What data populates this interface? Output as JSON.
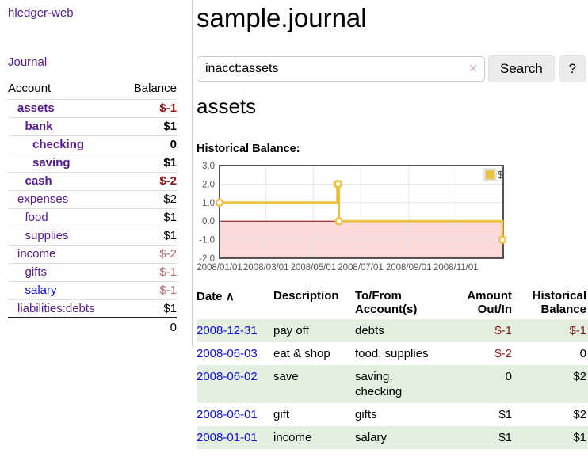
{
  "colors": {
    "link_purple": "#551a8b",
    "link_blue": "#0f0fd9",
    "negative_dark": "#8b1515",
    "negative_soft": "#b76c6c",
    "row_stripe_green": "#e3efdf",
    "chart_line_gold": "#edc240",
    "chart_fill_pink": "#fcdada",
    "chart_zero_line": "#8b0000",
    "chart_border": "#545454",
    "grid_line": "#e6e6e6"
  },
  "sidebar": {
    "brand": "hledger-web",
    "nav_journal": "Journal",
    "table": {
      "header": {
        "account": "Account",
        "balance": "Balance"
      },
      "accounts": [
        {
          "name": "assets",
          "balance": "$-1",
          "depth": 0,
          "bold": true,
          "neg": "dark"
        },
        {
          "name": "bank",
          "balance": "$1",
          "depth": 1,
          "bold": true
        },
        {
          "name": "checking",
          "balance": "0",
          "depth": 2,
          "bold": true
        },
        {
          "name": "saving",
          "balance": "$1",
          "depth": 2,
          "bold": true
        },
        {
          "name": "cash",
          "balance": "$-2",
          "depth": 1,
          "bold": true,
          "neg": "dark"
        },
        {
          "name": "expenses",
          "balance": "$2",
          "depth": 0
        },
        {
          "name": "food",
          "balance": "$1",
          "depth": 1
        },
        {
          "name": "supplies",
          "balance": "$1",
          "depth": 1
        },
        {
          "name": "income",
          "balance": "$-2",
          "depth": 0,
          "neg": "soft"
        },
        {
          "name": "gifts",
          "balance": "$-1",
          "depth": 1,
          "neg": "soft"
        },
        {
          "name": "salary",
          "balance": "$-1",
          "depth": 1,
          "neg": "soft",
          "unvisited": true
        },
        {
          "name": "liabilities:debts",
          "balance": "$1",
          "depth": 0
        }
      ],
      "total": "0"
    }
  },
  "main": {
    "title": "sample.journal",
    "search": {
      "value": "inacct:assets",
      "clear_icon": "✕",
      "search_button": "Search",
      "help_button": "?"
    },
    "account_heading": "assets",
    "chart_heading": "Historical Balance:"
  },
  "chart_data": {
    "type": "line",
    "title": "Historical Balance of assets",
    "step": true,
    "x_type": "date",
    "x_range": [
      "2008-01-01",
      "2009-01-01"
    ],
    "ylim": [
      -2,
      3
    ],
    "y_ticks": [
      {
        "value": 3,
        "label": "3.0"
      },
      {
        "value": 2,
        "label": "2.0"
      },
      {
        "value": 1,
        "label": "1.0"
      },
      {
        "value": 0,
        "label": "0.0"
      },
      {
        "value": -1,
        "label": "-1.0"
      },
      {
        "value": -2,
        "label": "-2.0"
      }
    ],
    "x_ticks": [
      {
        "date": "2008-01-01",
        "label": "2008/01/01"
      },
      {
        "date": "2008-03-01",
        "label": "2008/03/01"
      },
      {
        "date": "2008-05-01",
        "label": "2008/05/01"
      },
      {
        "date": "2008-07-01",
        "label": "2008/07/01"
      },
      {
        "date": "2008-09-01",
        "label": "2008/09/01"
      },
      {
        "date": "2008-11-01",
        "label": "2008/11/01"
      }
    ],
    "points": [
      [
        "2008-01-01",
        1
      ],
      [
        "2008-06-01",
        2
      ],
      [
        "2008-06-02",
        2
      ],
      [
        "2008-06-03",
        0
      ],
      [
        "2008-12-31",
        -1
      ]
    ],
    "legend": [
      {
        "label": "$",
        "color": "#edc240"
      }
    ],
    "legend_position": "top-right",
    "grid": true,
    "fill_below_zero": true
  },
  "register": {
    "headers": {
      "date": "Date",
      "sort_indicator": "∧",
      "description": "Description",
      "accounts": "To/From Account(s)",
      "amount": "Amount Out/In",
      "balance": "Historical Balance"
    },
    "rows": [
      {
        "date": "2008-12-31",
        "description": "pay off",
        "accounts": "debts",
        "amount": "$-1",
        "balance": "$-1"
      },
      {
        "date": "2008-06-03",
        "description": "eat & shop",
        "accounts": "food, supplies",
        "amount": "$-2",
        "balance": "0"
      },
      {
        "date": "2008-06-02",
        "description": "save",
        "accounts": "saving, checking",
        "amount": "0",
        "balance": "$2",
        "wrap": true
      },
      {
        "date": "2008-06-01",
        "description": "gift",
        "accounts": "gifts",
        "amount": "$1",
        "balance": "$2"
      },
      {
        "date": "2008-01-01",
        "description": "income",
        "accounts": "salary",
        "amount": "$1",
        "balance": "$1"
      }
    ]
  }
}
